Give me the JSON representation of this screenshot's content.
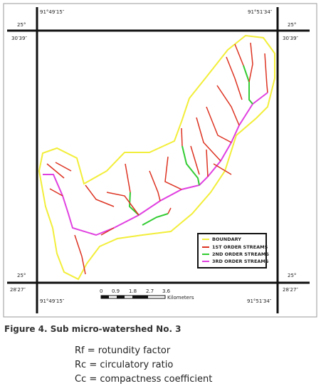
{
  "map": {
    "longitudes": {
      "top_left": "91°49′15″",
      "top_right": "91°51′34″",
      "bottom_left": "91°49′15″",
      "bottom_right": "91°51′34″"
    },
    "latitudes": {
      "top_left": [
        "25°",
        "30′39″"
      ],
      "top_right": [
        "25°",
        "30′39″"
      ],
      "bottom_left": [
        "25°",
        "28′27″"
      ],
      "bottom_right": [
        "25°",
        "28′27″"
      ]
    },
    "scale": {
      "ticks": [
        "0",
        "0.9",
        "1.8",
        "2.7",
        "3.6"
      ],
      "unit": "Kilometers"
    },
    "legend": [
      "BOUNDARY",
      "1ST ORDER STREAMS",
      "2ND ORDER STREAMS",
      "3RD ORDER STREAMS"
    ]
  },
  "caption": "Figure 4.  Sub micro-watershed No. 3",
  "definitions": [
    "Rf = rotundity factor",
    "Rc = circulatory ratio",
    "Cc = compactness coefficient"
  ]
}
